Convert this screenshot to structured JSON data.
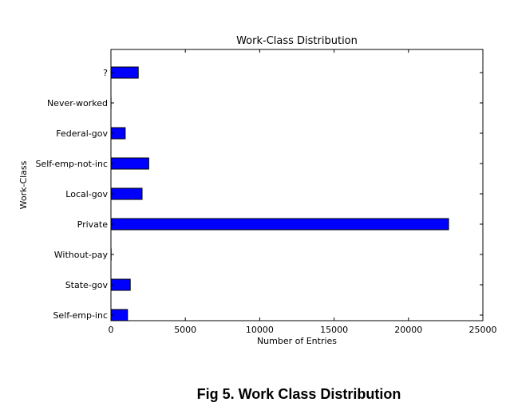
{
  "chart_data": {
    "type": "bar",
    "orientation": "horizontal",
    "title": "Work-Class Distribution",
    "xlabel": "Number of Entries",
    "ylabel": "Work-Class",
    "categories": [
      "?",
      "Never-worked",
      "Federal-gov",
      "Self-emp-not-inc",
      "Local-gov",
      "Private",
      "Without-pay",
      "State-gov",
      "Self-emp-inc"
    ],
    "values": [
      1836,
      7,
      960,
      2541,
      2093,
      22696,
      14,
      1298,
      1116
    ],
    "xlim": [
      0,
      25000
    ],
    "xticks": [
      "0",
      "5000",
      "10000",
      "15000",
      "20000",
      "25000"
    ],
    "bar_color": "#0000ff",
    "grid": false
  },
  "caption": "Fig 5. Work Class Distribution"
}
